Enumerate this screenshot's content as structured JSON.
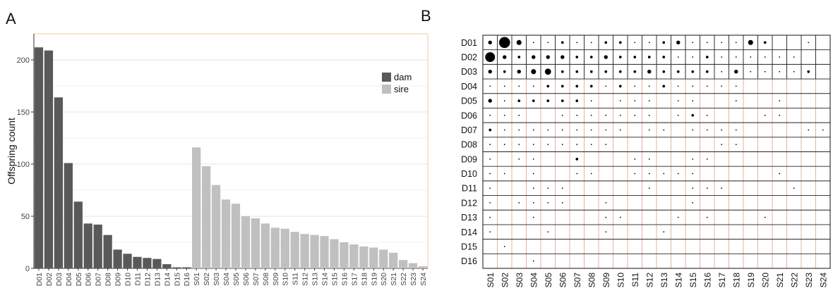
{
  "panels": {
    "a_label": "A",
    "b_label": "B"
  },
  "chart_data": [
    {
      "type": "bar",
      "ylabel": "Offspring count",
      "ylim": [
        0,
        225
      ],
      "yticks": [
        0,
        50,
        100,
        150,
        200
      ],
      "grid": true,
      "legend_position": "top-right",
      "categories": [
        "D01",
        "D02",
        "D03",
        "D04",
        "D05",
        "D06",
        "D07",
        "D08",
        "D09",
        "D10",
        "D11",
        "D12",
        "D13",
        "D14",
        "D15",
        "D16",
        "S01",
        "S02",
        "S03",
        "S04",
        "S05",
        "S06",
        "S07",
        "S08",
        "S09",
        "S10",
        "S11",
        "S12",
        "S13",
        "S14",
        "S15",
        "S16",
        "S17",
        "S18",
        "S19",
        "S20",
        "S21",
        "S22",
        "S23",
        "S24"
      ],
      "series": [
        {
          "name": "dam",
          "color": "#595959",
          "values": [
            212,
            209,
            164,
            101,
            64,
            43,
            42,
            32,
            18,
            14,
            11,
            10,
            9,
            4,
            1,
            1,
            null,
            null,
            null,
            null,
            null,
            null,
            null,
            null,
            null,
            null,
            null,
            null,
            null,
            null,
            null,
            null,
            null,
            null,
            null,
            null,
            null,
            null,
            null,
            null
          ]
        },
        {
          "name": "sire",
          "color": "#c0c0c0",
          "values": [
            null,
            null,
            null,
            null,
            null,
            null,
            null,
            null,
            null,
            null,
            null,
            null,
            null,
            null,
            null,
            null,
            116,
            98,
            80,
            66,
            62,
            50,
            48,
            43,
            39,
            38,
            35,
            33,
            32,
            31,
            28,
            25,
            23,
            21,
            20,
            18,
            15,
            8,
            5,
            2
          ]
        }
      ]
    },
    {
      "type": "heatmap",
      "rows": [
        "D01",
        "D02",
        "D03",
        "D04",
        "D05",
        "D06",
        "D07",
        "D08",
        "D09",
        "D10",
        "D11",
        "D12",
        "D13",
        "D14",
        "D15",
        "D16"
      ],
      "cols": [
        "S01",
        "S02",
        "S03",
        "S04",
        "S05",
        "S06",
        "S07",
        "S08",
        "S09",
        "S10",
        "S11",
        "S12",
        "S13",
        "S14",
        "S15",
        "S16",
        "S17",
        "S18",
        "S19",
        "S20",
        "S21",
        "S22",
        "S23",
        "S24"
      ],
      "values": [
        [
          3,
          9,
          4,
          1,
          1,
          2,
          1,
          1,
          2,
          2,
          1,
          1,
          2,
          3,
          1,
          1,
          1,
          1,
          4,
          2,
          0,
          0,
          1,
          0
        ],
        [
          8,
          3,
          2,
          3,
          3,
          3,
          2,
          2,
          3,
          2,
          2,
          2,
          2,
          1,
          1,
          2,
          1,
          1,
          1,
          1,
          1,
          1,
          0,
          0
        ],
        [
          3,
          2,
          3,
          4,
          5,
          2,
          2,
          2,
          2,
          2,
          2,
          3,
          2,
          2,
          2,
          2,
          1,
          3,
          1,
          1,
          1,
          1,
          2,
          0
        ],
        [
          1,
          1,
          1,
          1,
          2,
          2,
          2,
          2,
          1,
          2,
          1,
          1,
          2,
          1,
          1,
          1,
          1,
          1,
          0,
          0,
          0,
          0,
          0,
          0
        ],
        [
          3,
          1,
          2,
          2,
          2,
          2,
          2,
          1,
          0,
          1,
          1,
          1,
          0,
          1,
          1,
          0,
          0,
          1,
          0,
          0,
          1,
          0,
          0,
          0
        ],
        [
          1,
          1,
          1,
          0,
          0,
          1,
          1,
          1,
          1,
          1,
          1,
          1,
          0,
          1,
          2,
          1,
          0,
          0,
          0,
          1,
          1,
          0,
          0,
          0
        ],
        [
          2,
          1,
          1,
          1,
          1,
          1,
          1,
          1,
          1,
          1,
          0,
          1,
          1,
          0,
          1,
          1,
          1,
          1,
          0,
          0,
          0,
          0,
          1,
          1
        ],
        [
          1,
          1,
          1,
          1,
          1,
          1,
          1,
          1,
          1,
          0,
          0,
          0,
          0,
          0,
          0,
          0,
          1,
          1,
          0,
          0,
          0,
          0,
          0,
          0
        ],
        [
          1,
          0,
          1,
          1,
          0,
          0,
          2,
          0,
          0,
          0,
          1,
          1,
          0,
          0,
          1,
          1,
          0,
          0,
          0,
          0,
          0,
          0,
          0,
          0
        ],
        [
          1,
          1,
          0,
          1,
          0,
          0,
          1,
          1,
          0,
          0,
          1,
          1,
          1,
          1,
          1,
          0,
          0,
          0,
          0,
          0,
          1,
          0,
          0,
          0
        ],
        [
          1,
          0,
          0,
          1,
          1,
          1,
          0,
          0,
          0,
          0,
          0,
          1,
          0,
          0,
          1,
          1,
          1,
          0,
          0,
          0,
          0,
          1,
          0,
          0
        ],
        [
          1,
          0,
          1,
          1,
          1,
          1,
          0,
          0,
          1,
          0,
          0,
          0,
          0,
          0,
          1,
          0,
          0,
          0,
          0,
          0,
          0,
          0,
          0,
          0
        ],
        [
          1,
          0,
          0,
          1,
          0,
          0,
          0,
          0,
          1,
          1,
          0,
          0,
          0,
          1,
          0,
          1,
          0,
          0,
          0,
          1,
          0,
          0,
          0,
          0
        ],
        [
          1,
          0,
          0,
          0,
          1,
          0,
          0,
          0,
          1,
          0,
          0,
          0,
          1,
          0,
          0,
          0,
          0,
          0,
          0,
          0,
          0,
          0,
          0,
          0
        ],
        [
          0,
          1,
          0,
          0,
          0,
          0,
          0,
          0,
          0,
          0,
          0,
          0,
          0,
          0,
          0,
          0,
          0,
          0,
          0,
          0,
          0,
          0,
          0,
          0
        ],
        [
          0,
          0,
          0,
          1,
          0,
          0,
          0,
          0,
          0,
          0,
          0,
          0,
          0,
          0,
          0,
          0,
          0,
          0,
          0,
          0,
          0,
          0,
          0,
          0
        ]
      ]
    }
  ]
}
